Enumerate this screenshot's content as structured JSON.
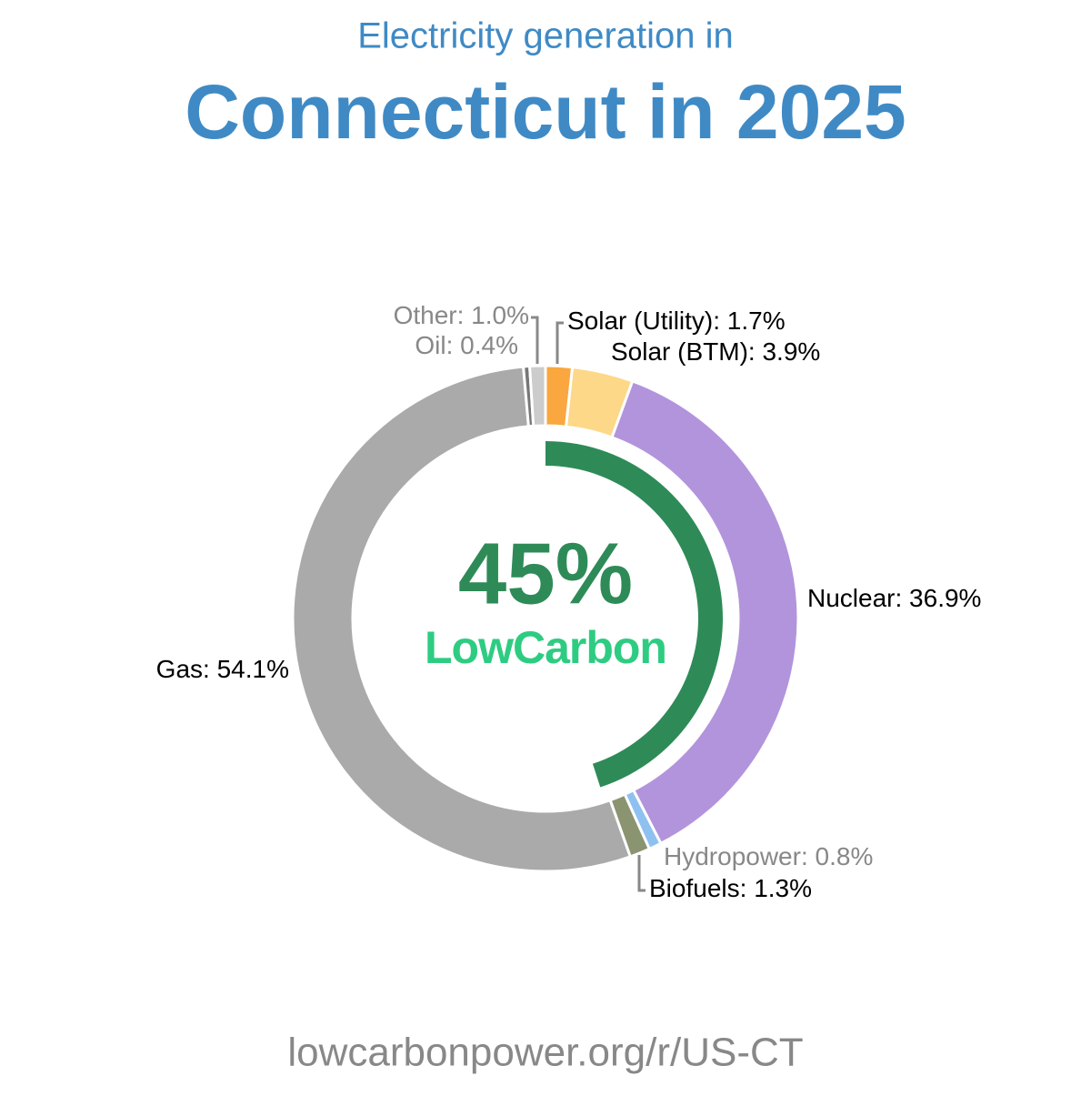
{
  "chart_data": {
    "type": "donut",
    "title": "Electricity generation in",
    "subtitle": "Connecticut in 2025",
    "categories": [
      "Solar (Utility)",
      "Solar (BTM)",
      "Nuclear",
      "Hydropower",
      "Biofuels",
      "Gas",
      "Oil",
      "Other"
    ],
    "values": [
      1.7,
      3.9,
      36.9,
      0.8,
      1.3,
      54.1,
      0.4,
      1.0
    ],
    "value_labels": [
      "1.7%",
      "3.9%",
      "36.9%",
      "0.8%",
      "1.3%",
      "54.1%",
      "0.4%",
      "1.0%"
    ],
    "label_separator": ": ",
    "colors": [
      "#f9a73e",
      "#fdd888",
      "#b294dc",
      "#8fc1f0",
      "#8a9470",
      "#aaaaaa",
      "#777777",
      "#cccccc"
    ],
    "label_colors": [
      "#000000",
      "#000000",
      "#000000",
      "#888888",
      "#000000",
      "#000000",
      "#888888",
      "#888888"
    ],
    "low_carbon": {
      "value": 45,
      "label": "45%",
      "name": "LowCarbon",
      "color": "#2e8b57",
      "name_color": "#2ecc82"
    },
    "footer": "lowcarbonpower.org/r/US-CT"
  }
}
